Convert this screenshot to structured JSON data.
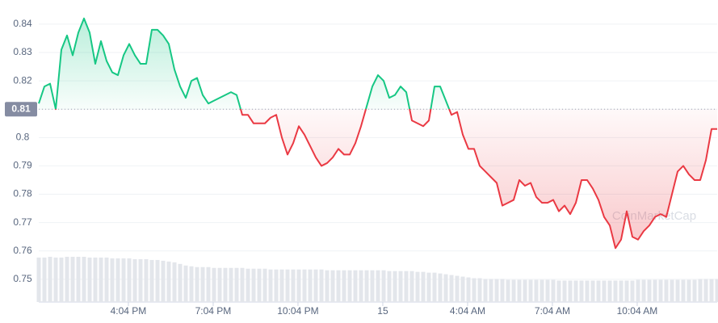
{
  "chart_data": {
    "type": "area-line",
    "x": [
      12.9,
      13.1,
      13.3,
      13.5,
      13.7,
      13.9,
      14.1,
      14.3,
      14.5,
      14.7,
      14.9,
      15.1,
      15.3,
      15.5,
      15.7,
      15.9,
      16.1,
      16.3,
      16.5,
      16.7,
      16.9,
      17.1,
      17.3,
      17.5,
      17.7,
      17.9,
      18.1,
      18.3,
      18.5,
      18.7,
      18.9,
      19.1,
      19.3,
      19.5,
      19.7,
      19.9,
      20.1,
      20.3,
      20.5,
      20.7,
      20.9,
      21.1,
      21.3,
      21.5,
      21.7,
      21.9,
      22.1,
      22.3,
      22.5,
      22.7,
      22.9,
      23.1,
      23.3,
      23.5,
      23.7,
      23.9,
      24.1,
      24.3,
      24.5,
      24.7,
      24.9,
      25.1,
      25.3,
      25.5,
      25.7,
      25.9,
      26.1,
      26.3,
      26.5,
      26.7,
      26.9,
      27.1,
      27.3,
      27.5,
      27.7,
      27.9,
      28.1,
      28.3,
      28.5,
      28.7,
      28.9,
      29.1,
      29.3,
      29.5,
      29.7,
      29.9,
      30.1,
      30.3,
      30.5,
      30.7,
      30.9,
      31.1,
      31.3,
      31.5,
      31.7,
      31.9,
      32.1,
      32.3,
      32.5,
      32.7,
      32.9,
      33.1,
      33.3,
      33.5,
      33.7,
      33.9,
      34.1,
      34.3,
      34.5,
      34.7,
      34.9,
      35.1,
      35.3,
      35.5,
      35.7,
      35.9,
      36.1,
      36.3,
      36.5,
      36.7,
      36.9
    ],
    "values": [
      0.812,
      0.818,
      0.819,
      0.81,
      0.831,
      0.836,
      0.829,
      0.837,
      0.842,
      0.837,
      0.826,
      0.834,
      0.827,
      0.823,
      0.822,
      0.829,
      0.833,
      0.829,
      0.826,
      0.826,
      0.838,
      0.838,
      0.836,
      0.833,
      0.824,
      0.818,
      0.814,
      0.82,
      0.821,
      0.815,
      0.812,
      0.813,
      0.814,
      0.815,
      0.816,
      0.815,
      0.808,
      0.808,
      0.805,
      0.805,
      0.805,
      0.807,
      0.808,
      0.8,
      0.794,
      0.798,
      0.804,
      0.801,
      0.797,
      0.793,
      0.79,
      0.791,
      0.793,
      0.796,
      0.794,
      0.794,
      0.798,
      0.804,
      0.811,
      0.818,
      0.822,
      0.82,
      0.814,
      0.815,
      0.818,
      0.816,
      0.806,
      0.805,
      0.804,
      0.806,
      0.818,
      0.818,
      0.813,
      0.808,
      0.809,
      0.801,
      0.796,
      0.796,
      0.79,
      0.788,
      0.786,
      0.784,
      0.776,
      0.777,
      0.778,
      0.785,
      0.783,
      0.784,
      0.779,
      0.777,
      0.777,
      0.778,
      0.774,
      0.776,
      0.773,
      0.777,
      0.785,
      0.785,
      0.782,
      0.778,
      0.772,
      0.769,
      0.761,
      0.764,
      0.774,
      0.765,
      0.764,
      0.767,
      0.769,
      0.772,
      0.773,
      0.772,
      0.78,
      0.788,
      0.79,
      0.787,
      0.785,
      0.785,
      0.792,
      0.803,
      0.803
    ],
    "volume": [
      56,
      56,
      57,
      56,
      56,
      57,
      57,
      57,
      57,
      56,
      56,
      56,
      56,
      55,
      55,
      55,
      55,
      54,
      54,
      54,
      53,
      53,
      52,
      51,
      50,
      48,
      46,
      45,
      44,
      44,
      44,
      43,
      43,
      43,
      43,
      43,
      43,
      42,
      42,
      42,
      42,
      41,
      41,
      41,
      41,
      41,
      41,
      41,
      41,
      41,
      41,
      40,
      40,
      40,
      40,
      40,
      40,
      40,
      40,
      40,
      40,
      40,
      39,
      39,
      39,
      39,
      39,
      38,
      38,
      37,
      37,
      36,
      35,
      34,
      33,
      32,
      31,
      30,
      30,
      29,
      29,
      29,
      29,
      28,
      28,
      28,
      28,
      28,
      28,
      28,
      28,
      28,
      27,
      27,
      27,
      27,
      27,
      27,
      27,
      27,
      27,
      27,
      27,
      27,
      27,
      27,
      28,
      28,
      28,
      28,
      28,
      28,
      28,
      28,
      28,
      28,
      28,
      29,
      29,
      29,
      29
    ],
    "baseline": 0.81,
    "up_color": "#16c784",
    "down_color": "#ea3943",
    "xlim": [
      12.9,
      36.9
    ],
    "xticks": [
      {
        "value": 16.07,
        "label": "4:04 PM"
      },
      {
        "value": 19.07,
        "label": "7:04 PM"
      },
      {
        "value": 22.07,
        "label": "10:04 PM"
      },
      {
        "value": 25.07,
        "label": "15"
      },
      {
        "value": 28.07,
        "label": "4:04 AM"
      },
      {
        "value": 31.07,
        "label": "7:04 AM"
      },
      {
        "value": 34.07,
        "label": "10:04 AM"
      }
    ],
    "ylim": [
      0.742,
      0.8485
    ],
    "yticks": [
      0.84,
      0.83,
      0.82,
      0.81,
      0.8,
      0.79,
      0.78,
      0.77,
      0.76,
      0.75
    ],
    "grid": true,
    "watermark": "CoinMarketCap"
  }
}
